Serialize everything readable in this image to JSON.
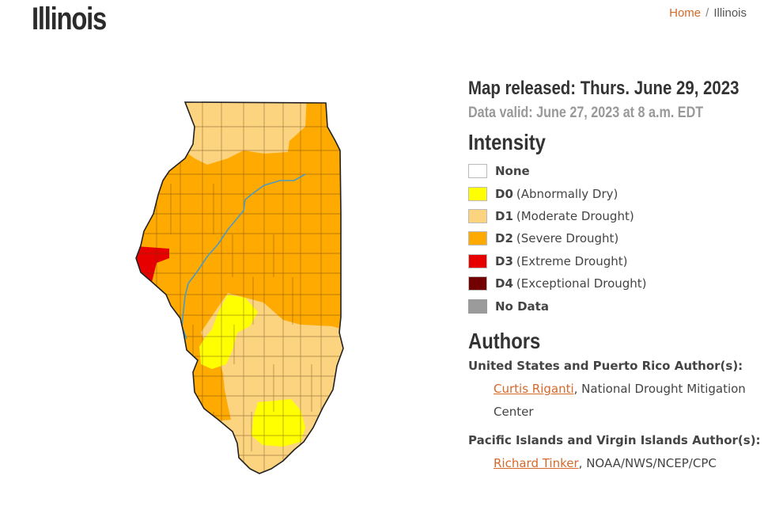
{
  "page": {
    "title": "Illinois"
  },
  "breadcrumb": {
    "home": "Home",
    "separator": "/",
    "current": "Illinois"
  },
  "release": {
    "released": "Map released: Thurs. June 29, 2023",
    "valid": "Data valid: June 27, 2023 at 8 a.m. EDT"
  },
  "intensity": {
    "heading": "Intensity",
    "items": [
      {
        "code": "",
        "label": "None",
        "color": "#ffffff"
      },
      {
        "code": "D0",
        "label": "(Abnormally Dry)",
        "color": "#ffff00"
      },
      {
        "code": "D1",
        "label": "(Moderate Drought)",
        "color": "#fcd37f"
      },
      {
        "code": "D2",
        "label": "(Severe Drought)",
        "color": "#ffaa00"
      },
      {
        "code": "D3",
        "label": "(Extreme Drought)",
        "color": "#e60000"
      },
      {
        "code": "D4",
        "label": "(Exceptional Drought)",
        "color": "#730000"
      },
      {
        "code": "",
        "label": "No Data",
        "color": "#9b9b9b"
      }
    ]
  },
  "authors": {
    "heading": "Authors",
    "groups": [
      {
        "title": "United States and Puerto Rico Author(s):",
        "name": "Curtis Riganti",
        "affiliation": ", National Drought Mitigation Center"
      },
      {
        "title": "Pacific Islands and Virgin Islands Author(s):",
        "name": "Richard Tinker",
        "affiliation": ", NOAA/NWS/NCEP/CPC"
      }
    ]
  },
  "map": {
    "colors": {
      "d0": "#ffff00",
      "d1": "#fcd37f",
      "d2": "#ffaa00",
      "d3": "#e60000",
      "river": "#4a9bc4",
      "border": "#222222"
    }
  }
}
